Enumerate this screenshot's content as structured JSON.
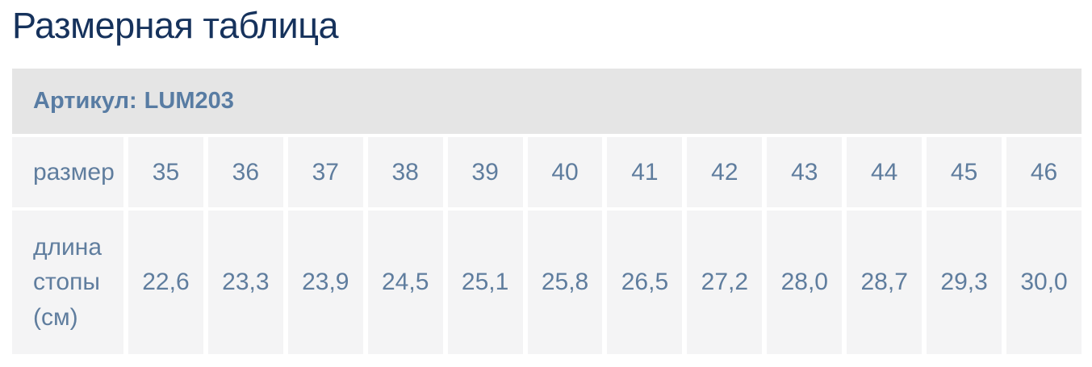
{
  "page": {
    "title": "Размерная таблица"
  },
  "size_table": {
    "article": {
      "label": "Артикул:",
      "value": "LUM203"
    },
    "rows": {
      "size": {
        "header": "размер",
        "values": [
          "35",
          "36",
          "37",
          "38",
          "39",
          "40",
          "41",
          "42",
          "43",
          "44",
          "45",
          "46"
        ]
      },
      "foot_length": {
        "header": "длина стопы (см)",
        "values": [
          "22,6",
          "23,3",
          "23,9",
          "24,5",
          "25,1",
          "25,8",
          "26,5",
          "27,2",
          "28,0",
          "28,7",
          "29,3",
          "30,0"
        ]
      }
    }
  },
  "colors": {
    "title_text": "#16325c",
    "article_bar_background": "#e5e5e5",
    "article_text": "#587ca3",
    "cell_background": "#f4f4f5",
    "cell_text": "#5f7d9e",
    "gutter": "#ffffff"
  }
}
